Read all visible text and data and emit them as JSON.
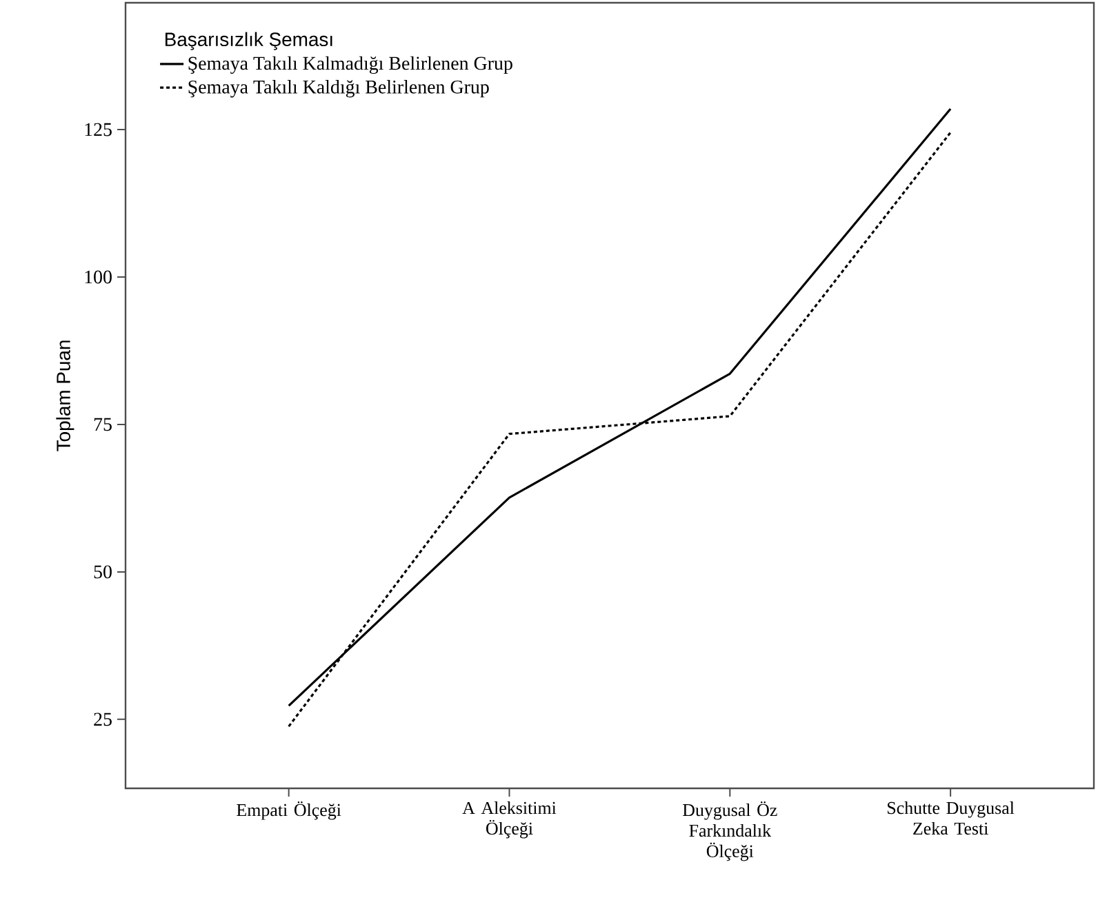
{
  "chart_data": {
    "type": "line",
    "ylabel": "Toplam Puan",
    "legend_title": "Başarısızlık Şeması",
    "legend": "top left",
    "categories": [
      "Empati Ölçeği",
      "A Aleksitimi Ölçeği",
      "Duygusal Öz Farkındalık Ölçeği",
      "Schutte Duygusal Zeka Testi"
    ],
    "series": [
      {
        "name": "Şemaya Takılı Kalmadığı Belirlenen Grup",
        "color": "#000000",
        "line_style": "solid",
        "values": [
          27.3,
          62.6,
          83.6,
          128.5
        ]
      },
      {
        "name": "Şemaya Takılı Kaldığı Belirlenen Grup",
        "color": "#000000",
        "line_style": "dotted",
        "values": [
          23.8,
          73.4,
          76.4,
          124.5
        ]
      }
    ],
    "ylim": [
      13.3,
      146.5
    ],
    "yticks": [
      25,
      50,
      75,
      100,
      125
    ],
    "grid": false
  }
}
